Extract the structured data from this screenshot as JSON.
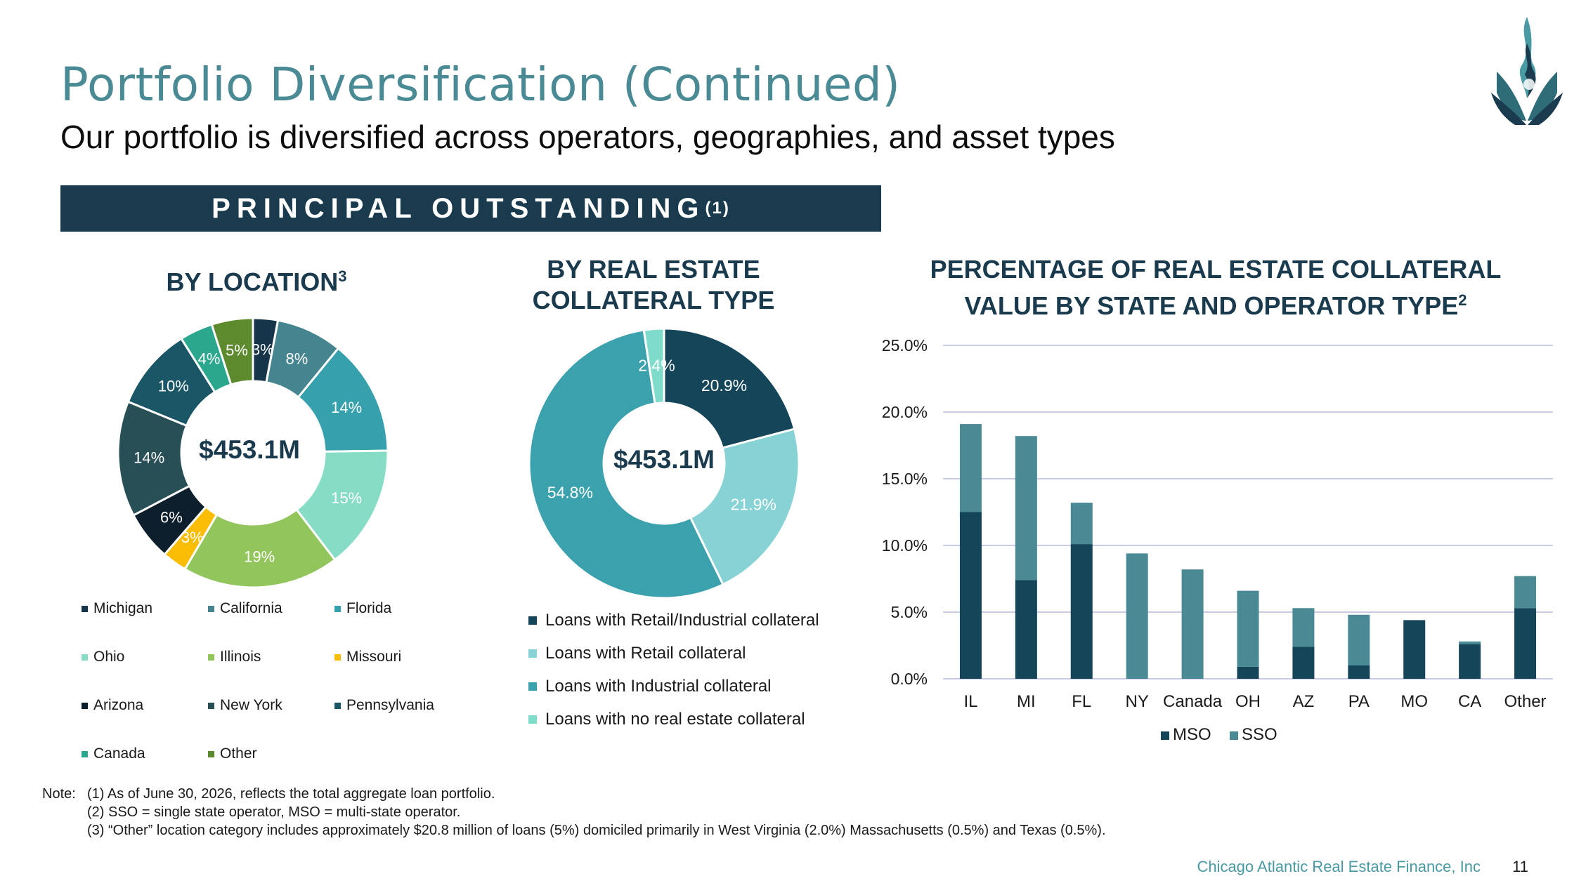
{
  "header": {
    "title": "Portfolio Diversification (Continued)",
    "subtitle": "Our portfolio is diversified across operators, geographies, and asset types",
    "banner": "PRINCIPAL OUTSTANDING",
    "banner_sup": "(1)"
  },
  "colors": {
    "brand_dark": "#1a3a4e",
    "title_teal": "#4a8a94",
    "mso": "#154559",
    "sso": "#4a8a94"
  },
  "location_chart": {
    "title": "BY LOCATION",
    "title_sup": "3",
    "center": "$453.1M"
  },
  "collateral_chart": {
    "title_line1": "BY REAL ESTATE",
    "title_line2": "COLLATERAL TYPE",
    "center": "$453.1M"
  },
  "state_chart": {
    "title_line1": "PERCENTAGE OF REAL ESTATE COLLATERAL",
    "title_line2": "VALUE BY STATE AND OPERATOR TYPE",
    "title_sup": "2"
  },
  "chart_data": [
    {
      "type": "pie",
      "variant": "donut",
      "title": "BY LOCATION",
      "center_label": "$453.1M",
      "legend_position": "bottom",
      "slices": [
        {
          "label": "Michigan",
          "value": 3,
          "display": "3%",
          "color": "#16354a"
        },
        {
          "label": "California",
          "value": 8,
          "display": "8%",
          "color": "#458590"
        },
        {
          "label": "Florida",
          "value": 14,
          "display": "14%",
          "color": "#36a0ac"
        },
        {
          "label": "Ohio",
          "value": 15,
          "display": "15%",
          "color": "#86dcc5"
        },
        {
          "label": "Illinois",
          "value": 19,
          "display": "19%",
          "color": "#92c55c"
        },
        {
          "label": "Missouri",
          "value": 3,
          "display": "3%",
          "color": "#fbbc04"
        },
        {
          "label": "Arizona",
          "value": 6,
          "display": "6%",
          "color": "#0d1f2c"
        },
        {
          "label": "New York",
          "value": 14,
          "display": "14%",
          "color": "#294f56"
        },
        {
          "label": "Pennsylvania",
          "value": 10,
          "display": "10%",
          "color": "#1b5666"
        },
        {
          "label": "Canada",
          "value": 4,
          "display": "4%",
          "color": "#2ba78e"
        },
        {
          "label": "Other",
          "value": 5,
          "display": "5%",
          "color": "#5e8a2e"
        }
      ]
    },
    {
      "type": "pie",
      "variant": "donut",
      "title": "BY REAL ESTATE COLLATERAL TYPE",
      "center_label": "$453.1M",
      "legend_position": "bottom",
      "slices": [
        {
          "label": "Loans with Retail/Industrial collateral",
          "value": 20.9,
          "display": "20.9%",
          "color": "#154559"
        },
        {
          "label": "Loans with Retail collateral",
          "value": 21.9,
          "display": "21.9%",
          "color": "#86d2d4"
        },
        {
          "label": "Loans with Industrial collateral",
          "value": 54.8,
          "display": "54.8%",
          "color": "#3aa1ad"
        },
        {
          "label": "Loans with no real estate collateral",
          "value": 2.4,
          "display": "2.4%",
          "color": "#7fdcca"
        }
      ]
    },
    {
      "type": "bar",
      "stacked": true,
      "title": "PERCENTAGE OF REAL ESTATE COLLATERAL VALUE BY STATE AND OPERATOR TYPE",
      "categories": [
        "IL",
        "MI",
        "FL",
        "NY",
        "Canada",
        "OH",
        "AZ",
        "PA",
        "MO",
        "CA",
        "Other"
      ],
      "series": [
        {
          "name": "MSO",
          "color": "#154559",
          "values": [
            12.5,
            7.4,
            10.1,
            0.0,
            0.0,
            0.9,
            2.4,
            1.0,
            4.4,
            2.6,
            5.3
          ]
        },
        {
          "name": "SSO",
          "color": "#4a8a94",
          "values": [
            6.6,
            10.8,
            3.1,
            9.4,
            8.2,
            5.7,
            2.9,
            3.8,
            0.0,
            0.2,
            2.4
          ]
        }
      ],
      "y_ticks": [
        "0.0%",
        "5.0%",
        "10.0%",
        "15.0%",
        "20.0%",
        "25.0%"
      ],
      "ylim": [
        0,
        25
      ],
      "grid": true,
      "legend_position": "bottom"
    }
  ],
  "notes": {
    "prefix": "Note:",
    "items": [
      "(1) As of June 30, 2026, reflects the total aggregate loan portfolio.",
      "(2) SSO = single state operator, MSO = multi-state operator.",
      "(3) “Other” location category includes approximately $20.8 million of loans (5%) domiciled primarily in West Virginia (2.0%) Massachusetts (0.5%) and Texas (0.5%)."
    ]
  },
  "footer": {
    "company": "Chicago Atlantic Real Estate Finance, Inc",
    "page_number": "11"
  }
}
